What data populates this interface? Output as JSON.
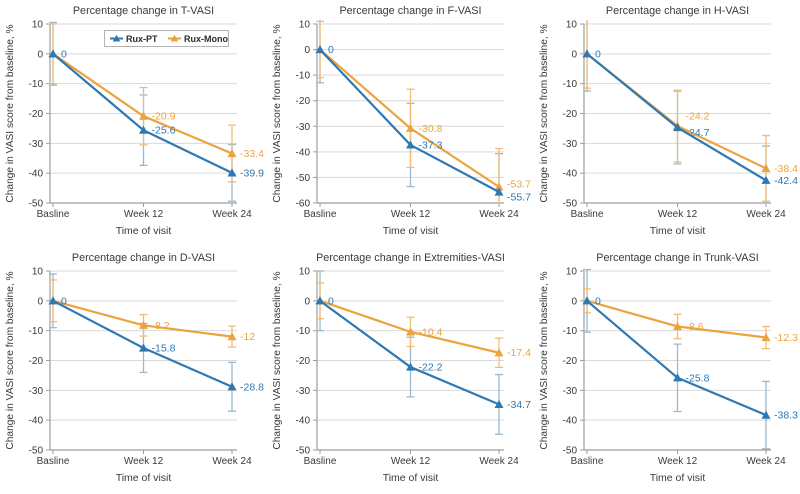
{
  "figure": {
    "background": "#ffffff"
  },
  "colors": {
    "blue": "#2E79B4",
    "orange": "#ECA33E",
    "blue_error": "#9BB9CD",
    "orange_error": "#F2BC76",
    "grid": "#D9D9D9",
    "axis": "#9E9E9E",
    "text": "#3A3A3A",
    "legend_border": "#B3B3B3"
  },
  "legend": {
    "items": [
      {
        "label": "Rux-PT",
        "color": "#2E79B4",
        "marker": "triangle-icon"
      },
      {
        "label": "Rux-Mono",
        "color": "#ECA33E",
        "marker": "triangle-icon"
      }
    ]
  },
  "chart_data": [
    {
      "type": "line",
      "title": "Percentage change in T-VASI",
      "xlabel": "Time of visit",
      "ylabel": "Change in VASI score from baseline, %",
      "categories": [
        "Basline",
        "Week 12",
        "Week 24"
      ],
      "ylim": [
        -50,
        10
      ],
      "ytick_step": 10,
      "grid": true,
      "show_legend": true,
      "series": [
        {
          "name": "Rux-PT",
          "color": "#2E79B4",
          "error_color": "#9BB9CD",
          "values": [
            0,
            -25.6,
            -39.9
          ],
          "errors": [
            10.5,
            11.8,
            9.5
          ],
          "labels": [
            "0",
            "-25.6",
            "-39.9"
          ],
          "label_dy": [
            0,
            0,
            0
          ]
        },
        {
          "name": "Rux-Mono",
          "color": "#ECA33E",
          "error_color": "#F2BC76",
          "values": [
            0,
            -20.9,
            -33.4
          ],
          "errors": [
            10.0,
            9.6,
            9.5
          ],
          "labels": [
            null,
            "-20.9",
            "-33.4"
          ],
          "label_dy": [
            0,
            0,
            0
          ]
        }
      ]
    },
    {
      "type": "line",
      "title": "Percentage change in F-VASI",
      "xlabel": "Time of visit",
      "ylabel": "Change in VASI score from baseline, %",
      "categories": [
        "Basline",
        "Week 12",
        "Week 24"
      ],
      "ylim": [
        -60,
        10
      ],
      "ytick_step": 10,
      "grid": true,
      "show_legend": false,
      "series": [
        {
          "name": "Rux-PT",
          "color": "#2E79B4",
          "error_color": "#9BB9CD",
          "values": [
            0,
            -37.3,
            -55.7
          ],
          "errors": [
            13.0,
            16.3,
            15.0
          ],
          "labels": [
            "0",
            "-37.3",
            "-55.7"
          ],
          "label_dy": [
            0,
            0,
            5
          ]
        },
        {
          "name": "Rux-Mono",
          "color": "#ECA33E",
          "error_color": "#F2BC76",
          "values": [
            0,
            -30.8,
            -53.7
          ],
          "errors": [
            11.0,
            15.3,
            15.0
          ],
          "labels": [
            null,
            "-30.8",
            "-53.7"
          ],
          "label_dy": [
            0,
            0,
            -3
          ]
        }
      ]
    },
    {
      "type": "line",
      "title": "Percentage change in H-VASI",
      "xlabel": "Time of visit",
      "ylabel": "Change in VASI score from baseline, %",
      "categories": [
        "Basline",
        "Week 12",
        "Week 24"
      ],
      "ylim": [
        -50,
        10
      ],
      "ytick_step": 10,
      "grid": true,
      "show_legend": false,
      "series": [
        {
          "name": "Rux-PT",
          "color": "#2E79B4",
          "error_color": "#9BB9CD",
          "values": [
            0,
            -24.7,
            -42.4
          ],
          "errors": [
            12.5,
            12.2,
            11.5
          ],
          "labels": [
            "0",
            "-24.7",
            "-42.4"
          ],
          "label_dy": [
            0,
            5,
            0
          ]
        },
        {
          "name": "Rux-Mono",
          "color": "#ECA33E",
          "error_color": "#F2BC76",
          "values": [
            0,
            -24.2,
            -38.4
          ],
          "errors": [
            11.5,
            12.0,
            11.0
          ],
          "labels": [
            null,
            "-24.2",
            "-38.4"
          ],
          "label_dy": [
            0,
            -10,
            0
          ]
        }
      ]
    },
    {
      "type": "line",
      "title": "Percentage change in D-VASI",
      "xlabel": "Time of visit",
      "ylabel": "Change in VASI score from baseline, %",
      "categories": [
        "Basline",
        "Week 12",
        "Week 24"
      ],
      "ylim": [
        -50,
        10
      ],
      "ytick_step": 10,
      "grid": true,
      "show_legend": false,
      "series": [
        {
          "name": "Rux-PT",
          "color": "#2E79B4",
          "error_color": "#9BB9CD",
          "values": [
            0,
            -15.8,
            -28.8
          ],
          "errors": [
            9.0,
            8.2,
            8.2
          ],
          "labels": [
            "0",
            "-15.8",
            "-28.8"
          ],
          "label_dy": [
            0,
            0,
            0
          ]
        },
        {
          "name": "Rux-Mono",
          "color": "#ECA33E",
          "error_color": "#F2BC76",
          "values": [
            0,
            -8.2,
            -12
          ],
          "errors": [
            7.0,
            3.6,
            3.5
          ],
          "labels": [
            null,
            "-8.2",
            "-12"
          ],
          "label_dy": [
            0,
            0,
            0
          ]
        }
      ]
    },
    {
      "type": "line",
      "title": "Percentage change in Extremities-VASI",
      "xlabel": "Time of visit",
      "ylabel": "Change in VASI score from baseline, %",
      "categories": [
        "Basline",
        "Week 12",
        "Week 24"
      ],
      "ylim": [
        -50,
        10
      ],
      "ytick_step": 10,
      "grid": true,
      "show_legend": false,
      "series": [
        {
          "name": "Rux-PT",
          "color": "#2E79B4",
          "error_color": "#9BB9CD",
          "values": [
            0,
            -22.2,
            -34.7
          ],
          "errors": [
            10.0,
            10.0,
            10.0
          ],
          "labels": [
            "0",
            "-22.2",
            "-34.7"
          ],
          "label_dy": [
            0,
            0,
            0
          ]
        },
        {
          "name": "Rux-Mono",
          "color": "#ECA33E",
          "error_color": "#F2BC76",
          "values": [
            0,
            -10.4,
            -17.4
          ],
          "errors": [
            6.0,
            4.9,
            4.9
          ],
          "labels": [
            null,
            "-10.4",
            "-17.4"
          ],
          "label_dy": [
            0,
            0,
            0
          ]
        }
      ]
    },
    {
      "type": "line",
      "title": "Percentage change in Trunk-VASI",
      "xlabel": "Time of visit",
      "ylabel": "Change in VASI score from baseline, %",
      "categories": [
        "Basline",
        "Week 12",
        "Week 24"
      ],
      "ylim": [
        -50,
        10
      ],
      "ytick_step": 10,
      "grid": true,
      "show_legend": false,
      "series": [
        {
          "name": "Rux-PT",
          "color": "#2E79B4",
          "error_color": "#9BB9CD",
          "values": [
            0,
            -25.8,
            -38.3
          ],
          "errors": [
            10.5,
            11.3,
            11.3
          ],
          "labels": [
            "0",
            "-25.8",
            "-38.3"
          ],
          "label_dy": [
            0,
            0,
            0
          ]
        },
        {
          "name": "Rux-Mono",
          "color": "#ECA33E",
          "error_color": "#F2BC76",
          "values": [
            0,
            -8.6,
            -12.3
          ],
          "errors": [
            4.0,
            4.1,
            3.7
          ],
          "labels": [
            null,
            "-8.6",
            "-12.3"
          ],
          "label_dy": [
            0,
            0,
            0
          ]
        }
      ]
    }
  ]
}
